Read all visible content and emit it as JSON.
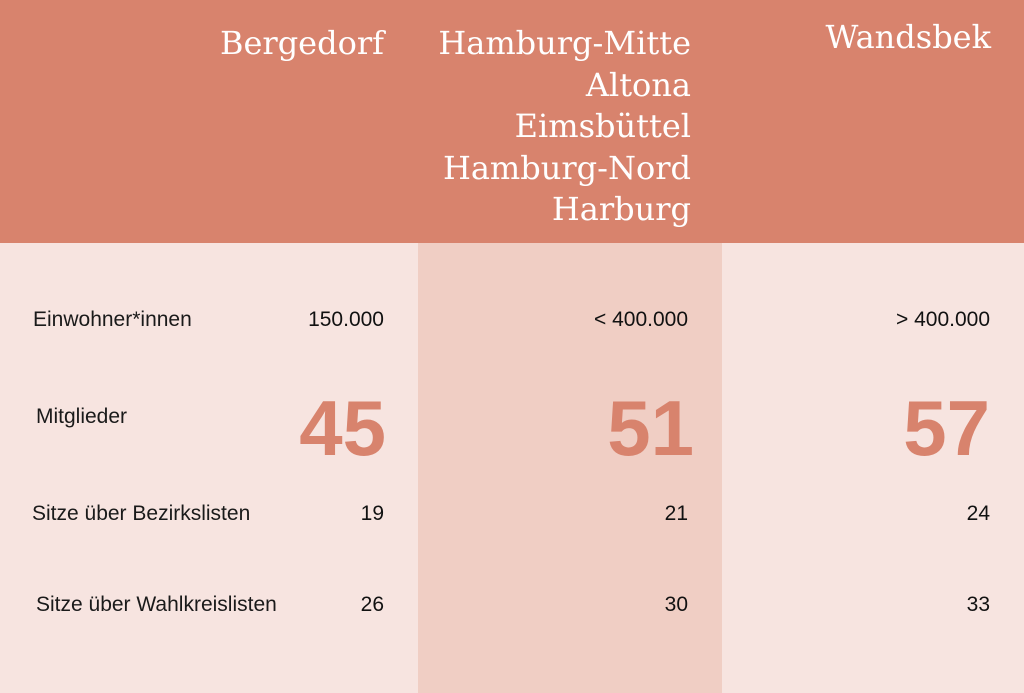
{
  "chart_data": {
    "type": "table",
    "columns": [
      {
        "id": "bergedorf",
        "lines": [
          "Bergedorf"
        ]
      },
      {
        "id": "mitte",
        "lines": [
          "Hamburg-Mitte",
          "Altona",
          "Eimsbüttel",
          "Hamburg-Nord",
          "Harburg"
        ]
      },
      {
        "id": "wandsbek",
        "lines": [
          "Wandsbek"
        ]
      }
    ],
    "rows": [
      {
        "label": "Einwohner*innen",
        "values": [
          "150.000",
          "< 400.000",
          "> 400.000"
        ]
      },
      {
        "label": "Mitglieder",
        "values": [
          "45",
          "51",
          "57"
        ]
      },
      {
        "label": "Sitze über Bezirkslisten",
        "values": [
          "19",
          "21",
          "24"
        ]
      },
      {
        "label": "Sitze über Wahlkreislisten",
        "values": [
          "26",
          "30",
          "33"
        ]
      }
    ]
  },
  "colors": {
    "header_bg": "#d8836d",
    "body_bg": "#f7e4e0",
    "middle_column_bg": "#f0cec4",
    "highlight_number": "#d8836d"
  }
}
